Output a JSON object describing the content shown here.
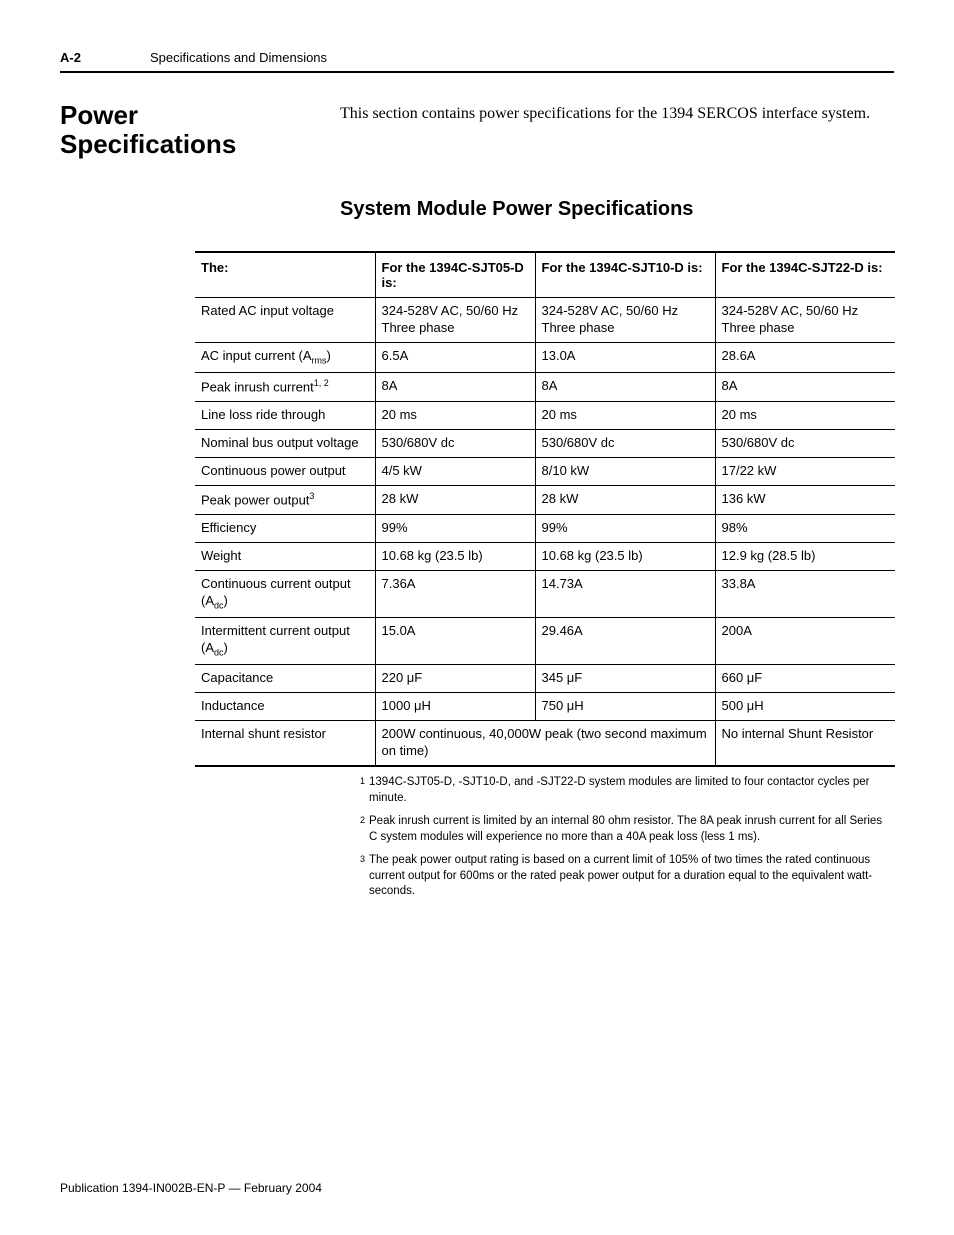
{
  "header": {
    "page_number": "A-2",
    "chapter_title": "Specifications and Dimensions"
  },
  "section": {
    "heading": "Power Specifications",
    "intro": "This section contains power specifications for the 1394 SERCOS interface system.",
    "sub_heading": "System Module Power Specifications"
  },
  "table": {
    "headers": [
      "The:",
      "For the 1394C-SJT05-D is:",
      "For the 1394C-SJT10-D is:",
      "For the 1394C-SJT22-D is:"
    ],
    "rows": [
      {
        "label": "Rated AC input voltage",
        "c1": "324-528V AC, 50/60 Hz Three phase",
        "c2": "324-528V AC, 50/60 Hz Three phase",
        "c3": "324-528V AC, 50/60 Hz Three phase"
      },
      {
        "label_html": "AC input current (A<sub>rms</sub>)",
        "c1": "6.5A",
        "c2": "13.0A",
        "c3": "28.6A"
      },
      {
        "label_html": "Peak inrush current<sup>1, 2</sup>",
        "c1": "8A",
        "c2": "8A",
        "c3": "8A"
      },
      {
        "label": "Line loss ride through",
        "c1": "20 ms",
        "c2": "20 ms",
        "c3": "20 ms"
      },
      {
        "label": "Nominal bus output voltage",
        "c1": "530/680V dc",
        "c2": "530/680V dc",
        "c3": "530/680V dc"
      },
      {
        "label": "Continuous power output",
        "c1": "4/5 kW",
        "c2": "8/10 kW",
        "c3": "17/22 kW"
      },
      {
        "label_html": "Peak power output<sup>3</sup>",
        "c1": "28 kW",
        "c2": "28 kW",
        "c3": "136 kW"
      },
      {
        "label": "Efficiency",
        "c1": "99%",
        "c2": "99%",
        "c3": "98%"
      },
      {
        "label": "Weight",
        "c1": "10.68 kg (23.5 lb)",
        "c2": "10.68 kg (23.5 lb)",
        "c3": "12.9 kg (28.5 lb)"
      },
      {
        "label_html": "Continuous current output (A<sub>dc</sub>)",
        "c1": "7.36A",
        "c2": "14.73A",
        "c3": "33.8A"
      },
      {
        "label_html": "Intermittent current output (A<sub>dc</sub>)",
        "c1": "15.0A",
        "c2": "29.46A",
        "c3": "200A"
      },
      {
        "label": "Capacitance",
        "c1": "220 μF",
        "c2": "345 μF",
        "c3": "660 μF"
      },
      {
        "label": "Inductance",
        "c1": "1000 μH",
        "c2": "750 μH",
        "c3": "500 μH"
      },
      {
        "label": "Internal shunt resistor",
        "span12": "200W continuous, 40,000W peak (two second maximum on time)",
        "c3": "No internal Shunt Resistor"
      }
    ]
  },
  "footnotes": {
    "n1": "1394C-SJT05-D, -SJT10-D, and -SJT22-D system modules are limited to four contactor cycles per minute.",
    "n2": "Peak inrush current is limited by an internal 80 ohm resistor. The 8A peak inrush current for all Series C system modules will experience no more than a 40A peak loss (less 1 ms).",
    "n3": "The peak power output rating is based on a current limit of 105% of two times the rated continuous current output for 600ms or the rated peak power output for a duration equal to the equivalent watt-seconds."
  },
  "footer": {
    "publication": "Publication 1394-IN002B-EN-P — February 2004"
  }
}
